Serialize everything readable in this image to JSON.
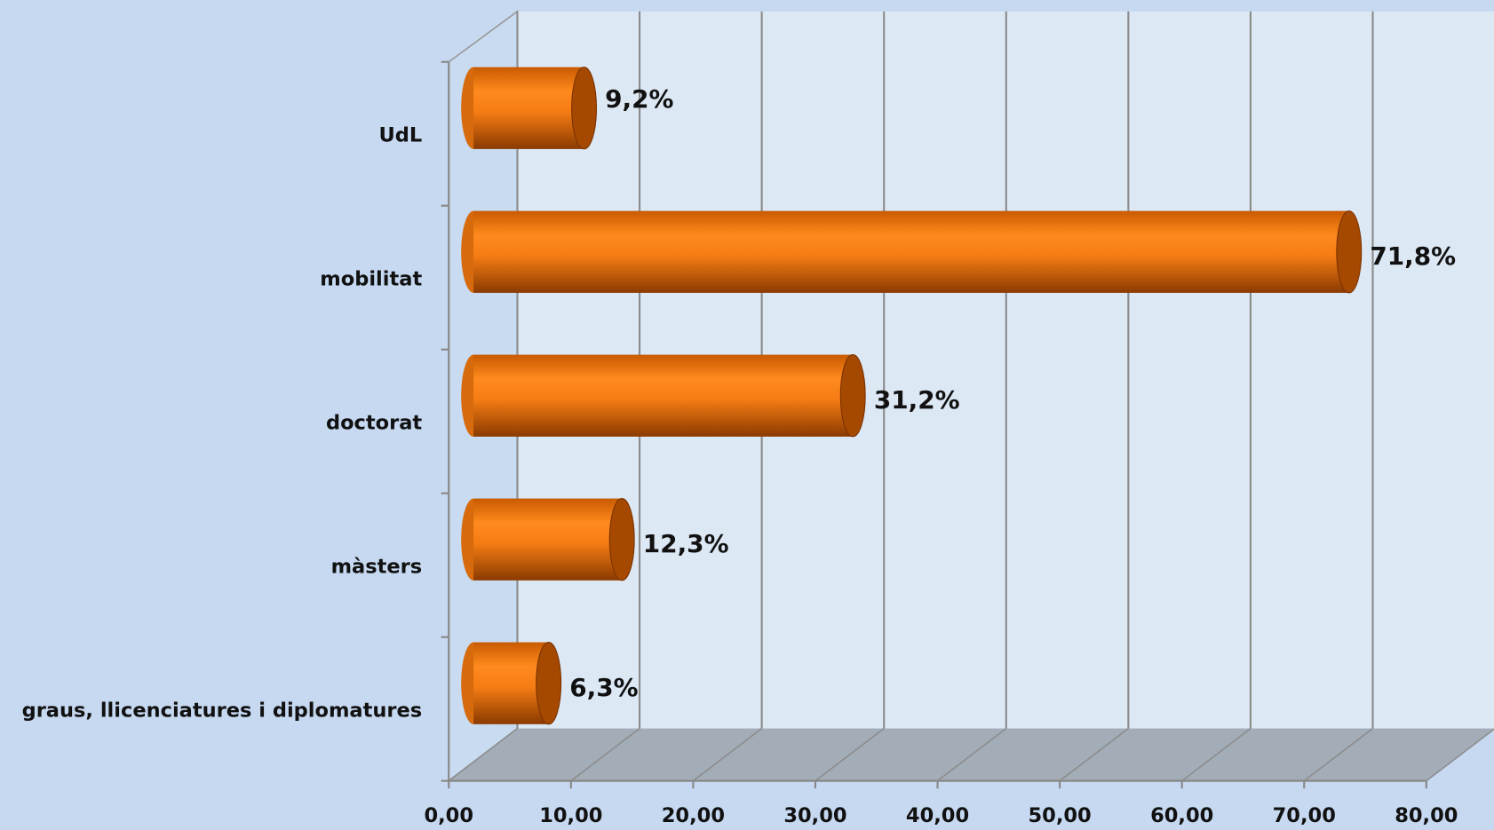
{
  "chart_data": {
    "type": "bar",
    "orientation": "horizontal",
    "three_d": true,
    "categories": [
      "UdL",
      "mobilitat",
      "doctorat",
      "màsters",
      "graus, llicenciatures i diplomatures"
    ],
    "values": [
      9.2,
      71.8,
      31.2,
      12.3,
      6.3
    ],
    "value_labels": [
      "9,2%",
      "71,8%",
      "31,2%",
      "12,3%",
      "6,3%"
    ],
    "color": "#f57c14",
    "xlim": [
      0,
      80
    ],
    "xticks": [
      {
        "value": 0,
        "label": "0,00"
      },
      {
        "value": 10,
        "label": "10,00"
      },
      {
        "value": 20,
        "label": "20,00"
      },
      {
        "value": 30,
        "label": "30,00"
      },
      {
        "value": 40,
        "label": "40,00"
      },
      {
        "value": 50,
        "label": "50,00"
      },
      {
        "value": 60,
        "label": "60,00"
      },
      {
        "value": 70,
        "label": "70,00"
      },
      {
        "value": 80,
        "label": "80,00"
      }
    ],
    "grid": true
  }
}
